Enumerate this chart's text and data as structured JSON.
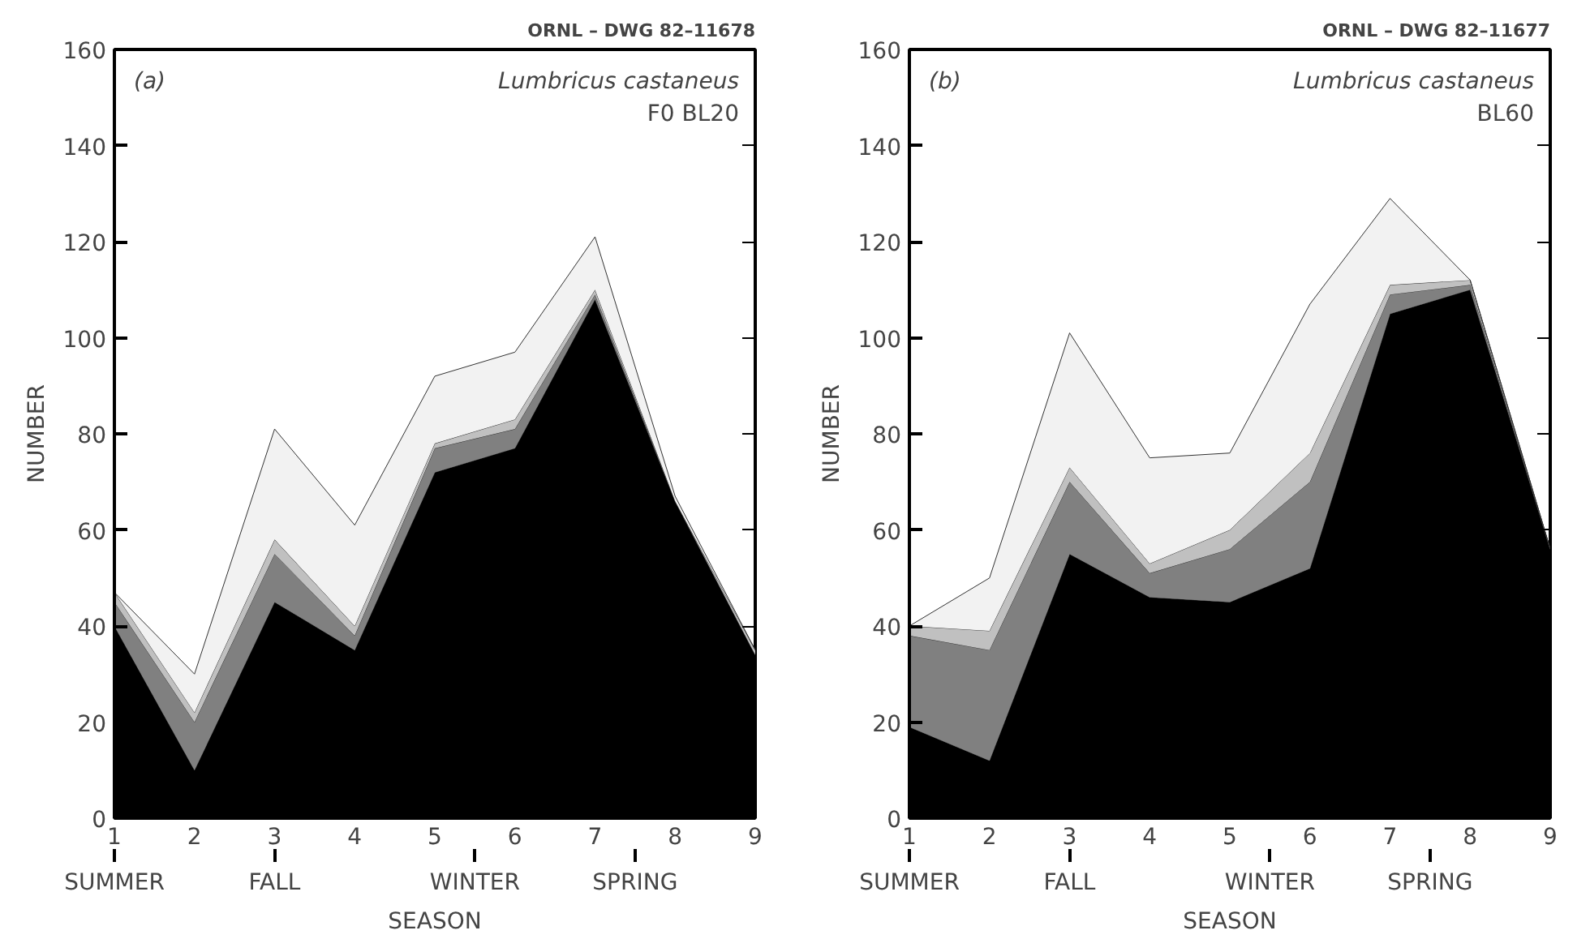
{
  "chart_data": [
    {
      "type": "area",
      "stacked": true,
      "xlabel": "SEASON",
      "ylabel": "NUMBER",
      "xlim": [
        1,
        9
      ],
      "ylim": [
        0,
        160
      ],
      "x": [
        1,
        2,
        3,
        4,
        5,
        6,
        7,
        8,
        9
      ],
      "xticks": [
        1,
        2,
        3,
        4,
        5,
        6,
        7,
        8,
        9
      ],
      "yticks": [
        0,
        20,
        40,
        60,
        80,
        100,
        120,
        140,
        160
      ],
      "grid": false,
      "annotations": [
        "ORNL – DWG 82–11678",
        "(a)",
        "Lumbricus castaneus",
        "F0 BL20"
      ],
      "ref_lines": [
        {
          "axis": "x",
          "value": 1,
          "label": "SUMMER"
        },
        {
          "axis": "x",
          "value": 3,
          "label": "FALL"
        },
        {
          "axis": "x",
          "value": 5.5,
          "label": "WINTER"
        },
        {
          "axis": "x",
          "value": 7.5,
          "label": "SPRING"
        }
      ],
      "series": [
        {
          "color": "#000000",
          "values": [
            40,
            10,
            45,
            35,
            72,
            77,
            108,
            66,
            34
          ]
        },
        {
          "color": "#808080",
          "values": [
            5,
            10,
            10,
            3,
            5,
            4,
            1,
            0,
            0
          ]
        },
        {
          "color": "#c0c0c0",
          "values": [
            2,
            2,
            3,
            2,
            1,
            2,
            1,
            0,
            1
          ]
        },
        {
          "color": "#f2f2f2",
          "values": [
            0,
            8,
            23,
            21,
            14,
            14,
            11,
            1,
            0
          ]
        }
      ]
    },
    {
      "type": "area",
      "stacked": true,
      "xlabel": "SEASON",
      "ylabel": "NUMBER",
      "xlim": [
        1,
        9
      ],
      "ylim": [
        0,
        160
      ],
      "x": [
        1,
        2,
        3,
        4,
        5,
        6,
        7,
        8,
        9
      ],
      "xticks": [
        1,
        2,
        3,
        4,
        5,
        6,
        7,
        8,
        9
      ],
      "yticks": [
        0,
        20,
        40,
        60,
        80,
        100,
        120,
        140,
        160
      ],
      "grid": false,
      "annotations": [
        "ORNL – DWG 82–11677",
        "(b)",
        "Lumbricus castaneus",
        "BL60"
      ],
      "ref_lines": [
        {
          "axis": "x",
          "value": 1,
          "label": "SUMMER"
        },
        {
          "axis": "x",
          "value": 3,
          "label": "FALL"
        },
        {
          "axis": "x",
          "value": 5.5,
          "label": "WINTER"
        },
        {
          "axis": "x",
          "value": 7.5,
          "label": "SPRING"
        }
      ],
      "series": [
        {
          "color": "#000000",
          "values": [
            19,
            12,
            55,
            46,
            45,
            52,
            105,
            110,
            56
          ]
        },
        {
          "color": "#808080",
          "values": [
            19,
            23,
            15,
            5,
            11,
            18,
            4,
            1,
            0
          ]
        },
        {
          "color": "#c0c0c0",
          "values": [
            2,
            4,
            3,
            2,
            4,
            6,
            2,
            1,
            0
          ]
        },
        {
          "color": "#f2f2f2",
          "values": [
            0,
            11,
            28,
            22,
            16,
            31,
            18,
            0,
            0
          ]
        }
      ]
    }
  ]
}
